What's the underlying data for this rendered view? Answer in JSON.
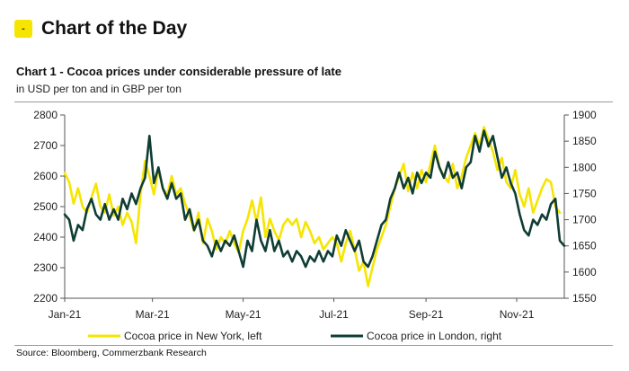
{
  "header": {
    "badge": "-",
    "title": "Chart of the Day"
  },
  "source": "Source: Bloomberg, Commerzbank Research",
  "colors": {
    "new_york": "#f6e500",
    "london": "#0f3d34",
    "badge": "#f6e500",
    "axis": "#555555"
  },
  "chart_data": {
    "type": "line",
    "title": "Chart 1 - Cocoa prices under considerable pressure of late",
    "subtitle": "in USD per ton and in GBP per ton",
    "xlabel": "",
    "ylabel": "",
    "x_ticks": [
      "Jan-21",
      "Mar-21",
      "May-21",
      "Jul-21",
      "Sep-21",
      "Nov-21"
    ],
    "x_range": [
      "2021-01-01",
      "2021-12-03"
    ],
    "ylim_left": [
      2200,
      2800
    ],
    "yticks_left": [
      2200,
      2300,
      2400,
      2500,
      2600,
      2700,
      2800
    ],
    "ylim_right": [
      1550,
      1900
    ],
    "yticks_right": [
      1550,
      1600,
      1650,
      1700,
      1750,
      1800,
      1850,
      1900
    ],
    "grid": false,
    "legend_position": "bottom",
    "series": [
      {
        "name": "Cocoa price in New York, left",
        "axis": "left",
        "color": "#f6e500",
        "points": [
          [
            "2021-01-01",
            2610
          ],
          [
            "2021-01-04",
            2580
          ],
          [
            "2021-01-07",
            2510
          ],
          [
            "2021-01-10",
            2560
          ],
          [
            "2021-01-13",
            2500
          ],
          [
            "2021-01-16",
            2480
          ],
          [
            "2021-01-19",
            2530
          ],
          [
            "2021-01-22",
            2575
          ],
          [
            "2021-01-25",
            2500
          ],
          [
            "2021-01-28",
            2480
          ],
          [
            "2021-01-31",
            2540
          ],
          [
            "2021-02-03",
            2470
          ],
          [
            "2021-02-06",
            2500
          ],
          [
            "2021-02-09",
            2440
          ],
          [
            "2021-02-12",
            2480
          ],
          [
            "2021-02-15",
            2450
          ],
          [
            "2021-02-18",
            2380
          ],
          [
            "2021-02-21",
            2540
          ],
          [
            "2021-02-24",
            2650
          ],
          [
            "2021-02-27",
            2600
          ],
          [
            "2021-03-02",
            2540
          ],
          [
            "2021-03-05",
            2620
          ],
          [
            "2021-03-08",
            2560
          ],
          [
            "2021-03-11",
            2540
          ],
          [
            "2021-03-14",
            2600
          ],
          [
            "2021-03-17",
            2540
          ],
          [
            "2021-03-20",
            2560
          ],
          [
            "2021-03-23",
            2510
          ],
          [
            "2021-03-26",
            2470
          ],
          [
            "2021-03-29",
            2420
          ],
          [
            "2021-04-01",
            2480
          ],
          [
            "2021-04-04",
            2380
          ],
          [
            "2021-04-07",
            2460
          ],
          [
            "2021-04-10",
            2420
          ],
          [
            "2021-04-13",
            2360
          ],
          [
            "2021-04-16",
            2400
          ],
          [
            "2021-04-19",
            2380
          ],
          [
            "2021-04-22",
            2420
          ],
          [
            "2021-04-25",
            2380
          ],
          [
            "2021-04-28",
            2350
          ],
          [
            "2021-05-01",
            2420
          ],
          [
            "2021-05-04",
            2460
          ],
          [
            "2021-05-07",
            2520
          ],
          [
            "2021-05-10",
            2450
          ],
          [
            "2021-05-13",
            2530
          ],
          [
            "2021-05-16",
            2400
          ],
          [
            "2021-05-19",
            2460
          ],
          [
            "2021-05-22",
            2420
          ],
          [
            "2021-05-25",
            2390
          ],
          [
            "2021-05-28",
            2440
          ],
          [
            "2021-05-31",
            2460
          ],
          [
            "2021-06-03",
            2440
          ],
          [
            "2021-06-06",
            2460
          ],
          [
            "2021-06-09",
            2400
          ],
          [
            "2021-06-12",
            2450
          ],
          [
            "2021-06-15",
            2420
          ],
          [
            "2021-06-18",
            2380
          ],
          [
            "2021-06-21",
            2400
          ],
          [
            "2021-06-24",
            2360
          ],
          [
            "2021-06-27",
            2380
          ],
          [
            "2021-06-30",
            2400
          ],
          [
            "2021-07-03",
            2380
          ],
          [
            "2021-07-06",
            2320
          ],
          [
            "2021-07-09",
            2380
          ],
          [
            "2021-07-12",
            2420
          ],
          [
            "2021-07-15",
            2360
          ],
          [
            "2021-07-18",
            2290
          ],
          [
            "2021-07-21",
            2320
          ],
          [
            "2021-07-24",
            2240
          ],
          [
            "2021-07-27",
            2300
          ],
          [
            "2021-07-30",
            2360
          ],
          [
            "2021-08-02",
            2400
          ],
          [
            "2021-08-05",
            2440
          ],
          [
            "2021-08-08",
            2500
          ],
          [
            "2021-08-11",
            2560
          ],
          [
            "2021-08-14",
            2600
          ],
          [
            "2021-08-17",
            2640
          ],
          [
            "2021-08-20",
            2550
          ],
          [
            "2021-08-23",
            2610
          ],
          [
            "2021-08-26",
            2560
          ],
          [
            "2021-08-29",
            2620
          ],
          [
            "2021-09-01",
            2580
          ],
          [
            "2021-09-04",
            2640
          ],
          [
            "2021-09-07",
            2700
          ],
          [
            "2021-09-10",
            2630
          ],
          [
            "2021-09-13",
            2600
          ],
          [
            "2021-09-16",
            2580
          ],
          [
            "2021-09-19",
            2640
          ],
          [
            "2021-09-22",
            2560
          ],
          [
            "2021-09-25",
            2600
          ],
          [
            "2021-09-28",
            2660
          ],
          [
            "2021-10-01",
            2700
          ],
          [
            "2021-10-04",
            2740
          ],
          [
            "2021-10-07",
            2700
          ],
          [
            "2021-10-10",
            2760
          ],
          [
            "2021-10-13",
            2720
          ],
          [
            "2021-10-16",
            2680
          ],
          [
            "2021-10-19",
            2620
          ],
          [
            "2021-10-22",
            2660
          ],
          [
            "2021-10-25",
            2580
          ],
          [
            "2021-10-28",
            2560
          ],
          [
            "2021-10-31",
            2620
          ],
          [
            "2021-11-03",
            2540
          ],
          [
            "2021-11-06",
            2500
          ],
          [
            "2021-11-09",
            2560
          ],
          [
            "2021-11-12",
            2480
          ],
          [
            "2021-11-15",
            2520
          ],
          [
            "2021-11-18",
            2560
          ],
          [
            "2021-11-21",
            2590
          ],
          [
            "2021-11-24",
            2580
          ],
          [
            "2021-11-27",
            2500
          ],
          [
            "2021-11-30",
            2480
          ]
        ]
      },
      {
        "name": "Cocoa price in London, right",
        "axis": "right",
        "color": "#0f3d34",
        "points": [
          [
            "2021-01-01",
            1710
          ],
          [
            "2021-01-04",
            1700
          ],
          [
            "2021-01-07",
            1660
          ],
          [
            "2021-01-10",
            1690
          ],
          [
            "2021-01-13",
            1680
          ],
          [
            "2021-01-16",
            1720
          ],
          [
            "2021-01-19",
            1740
          ],
          [
            "2021-01-22",
            1710
          ],
          [
            "2021-01-25",
            1700
          ],
          [
            "2021-01-28",
            1730
          ],
          [
            "2021-01-31",
            1700
          ],
          [
            "2021-02-03",
            1720
          ],
          [
            "2021-02-06",
            1700
          ],
          [
            "2021-02-09",
            1740
          ],
          [
            "2021-02-12",
            1720
          ],
          [
            "2021-02-15",
            1750
          ],
          [
            "2021-02-18",
            1730
          ],
          [
            "2021-02-21",
            1760
          ],
          [
            "2021-02-24",
            1780
          ],
          [
            "2021-02-27",
            1860
          ],
          [
            "2021-03-02",
            1770
          ],
          [
            "2021-03-05",
            1800
          ],
          [
            "2021-03-08",
            1760
          ],
          [
            "2021-03-11",
            1740
          ],
          [
            "2021-03-14",
            1770
          ],
          [
            "2021-03-17",
            1740
          ],
          [
            "2021-03-20",
            1750
          ],
          [
            "2021-03-23",
            1700
          ],
          [
            "2021-03-26",
            1720
          ],
          [
            "2021-03-29",
            1680
          ],
          [
            "2021-04-01",
            1700
          ],
          [
            "2021-04-04",
            1660
          ],
          [
            "2021-04-07",
            1650
          ],
          [
            "2021-04-10",
            1630
          ],
          [
            "2021-04-13",
            1660
          ],
          [
            "2021-04-16",
            1640
          ],
          [
            "2021-04-19",
            1660
          ],
          [
            "2021-04-22",
            1650
          ],
          [
            "2021-04-25",
            1670
          ],
          [
            "2021-04-28",
            1640
          ],
          [
            "2021-05-01",
            1610
          ],
          [
            "2021-05-04",
            1660
          ],
          [
            "2021-05-07",
            1640
          ],
          [
            "2021-05-10",
            1700
          ],
          [
            "2021-05-13",
            1660
          ],
          [
            "2021-05-16",
            1640
          ],
          [
            "2021-05-19",
            1680
          ],
          [
            "2021-05-22",
            1640
          ],
          [
            "2021-05-25",
            1660
          ],
          [
            "2021-05-28",
            1630
          ],
          [
            "2021-05-31",
            1640
          ],
          [
            "2021-06-03",
            1620
          ],
          [
            "2021-06-06",
            1640
          ],
          [
            "2021-06-09",
            1630
          ],
          [
            "2021-06-12",
            1610
          ],
          [
            "2021-06-15",
            1630
          ],
          [
            "2021-06-18",
            1620
          ],
          [
            "2021-06-21",
            1640
          ],
          [
            "2021-06-24",
            1620
          ],
          [
            "2021-06-27",
            1640
          ],
          [
            "2021-06-30",
            1630
          ],
          [
            "2021-07-03",
            1670
          ],
          [
            "2021-07-06",
            1650
          ],
          [
            "2021-07-09",
            1680
          ],
          [
            "2021-07-12",
            1660
          ],
          [
            "2021-07-15",
            1640
          ],
          [
            "2021-07-18",
            1660
          ],
          [
            "2021-07-21",
            1620
          ],
          [
            "2021-07-24",
            1610
          ],
          [
            "2021-07-27",
            1630
          ],
          [
            "2021-07-30",
            1660
          ],
          [
            "2021-08-02",
            1690
          ],
          [
            "2021-08-05",
            1700
          ],
          [
            "2021-08-08",
            1740
          ],
          [
            "2021-08-11",
            1760
          ],
          [
            "2021-08-14",
            1790
          ],
          [
            "2021-08-17",
            1760
          ],
          [
            "2021-08-20",
            1780
          ],
          [
            "2021-08-23",
            1750
          ],
          [
            "2021-08-26",
            1790
          ],
          [
            "2021-08-29",
            1770
          ],
          [
            "2021-09-01",
            1790
          ],
          [
            "2021-09-04",
            1780
          ],
          [
            "2021-09-07",
            1830
          ],
          [
            "2021-09-10",
            1800
          ],
          [
            "2021-09-13",
            1780
          ],
          [
            "2021-09-16",
            1810
          ],
          [
            "2021-09-19",
            1780
          ],
          [
            "2021-09-22",
            1790
          ],
          [
            "2021-09-25",
            1760
          ],
          [
            "2021-09-28",
            1800
          ],
          [
            "2021-10-01",
            1810
          ],
          [
            "2021-10-04",
            1860
          ],
          [
            "2021-10-07",
            1830
          ],
          [
            "2021-10-10",
            1870
          ],
          [
            "2021-10-13",
            1840
          ],
          [
            "2021-10-16",
            1860
          ],
          [
            "2021-10-19",
            1820
          ],
          [
            "2021-10-22",
            1780
          ],
          [
            "2021-10-25",
            1800
          ],
          [
            "2021-10-28",
            1770
          ],
          [
            "2021-10-31",
            1750
          ],
          [
            "2021-11-03",
            1710
          ],
          [
            "2021-11-06",
            1680
          ],
          [
            "2021-11-09",
            1670
          ],
          [
            "2021-11-12",
            1700
          ],
          [
            "2021-11-15",
            1690
          ],
          [
            "2021-11-18",
            1710
          ],
          [
            "2021-11-21",
            1700
          ],
          [
            "2021-11-24",
            1730
          ],
          [
            "2021-11-27",
            1740
          ],
          [
            "2021-11-30",
            1660
          ],
          [
            "2021-12-03",
            1650
          ]
        ]
      }
    ]
  }
}
